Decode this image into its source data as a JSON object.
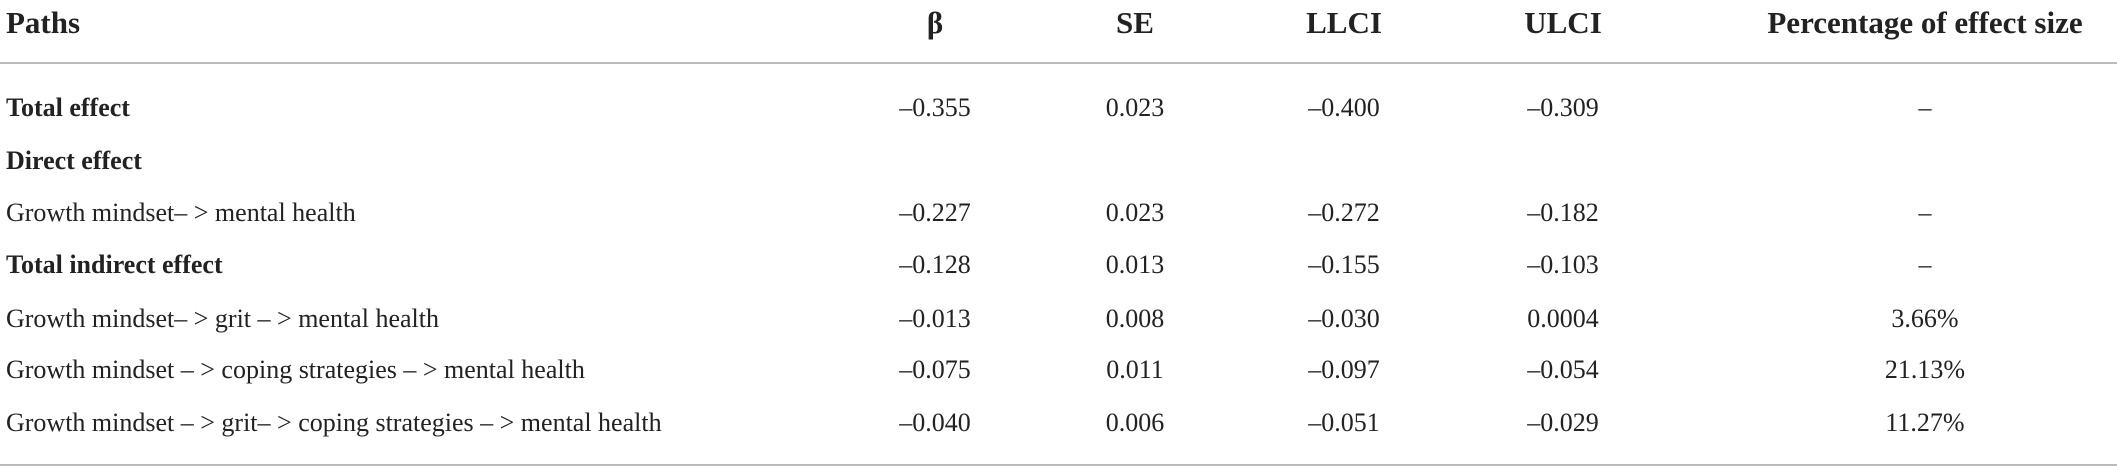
{
  "table": {
    "header": [
      "Paths",
      "β",
      "SE",
      "LLCI",
      "ULCI",
      "Percentage of effect size"
    ],
    "rows": [
      {
        "cells": [
          "Total effect",
          "–0.355",
          "0.023",
          "–0.400",
          "–0.309",
          "–"
        ],
        "bold": true
      },
      {
        "cells": [
          "Direct effect"
        ],
        "bold": true
      },
      {
        "cells": [
          "Growth mindset– > mental health",
          "–0.227",
          "0.023",
          "–0.272",
          "–0.182",
          "–"
        ],
        "bold": false
      },
      {
        "cells": [
          "Total indirect effect",
          "–0.128",
          "0.013",
          "–0.155",
          "–0.103",
          "–"
        ],
        "bold": true
      },
      {
        "cells": [
          "Growth mindset– > grit – > mental health",
          "–0.013",
          "0.008",
          "–0.030",
          "0.0004",
          "3.66%"
        ],
        "bold": false
      },
      {
        "cells": [
          "Growth mindset – > coping strategies – > mental health",
          "–0.075",
          "0.011",
          "–0.097",
          "–0.054",
          "21.13%"
        ],
        "bold": false
      },
      {
        "cells": [
          "Growth mindset – > grit– > coping strategies – > mental health",
          "–0.040",
          "0.006",
          "–0.051",
          "–0.029",
          "11.27%"
        ],
        "bold": false
      }
    ]
  }
}
